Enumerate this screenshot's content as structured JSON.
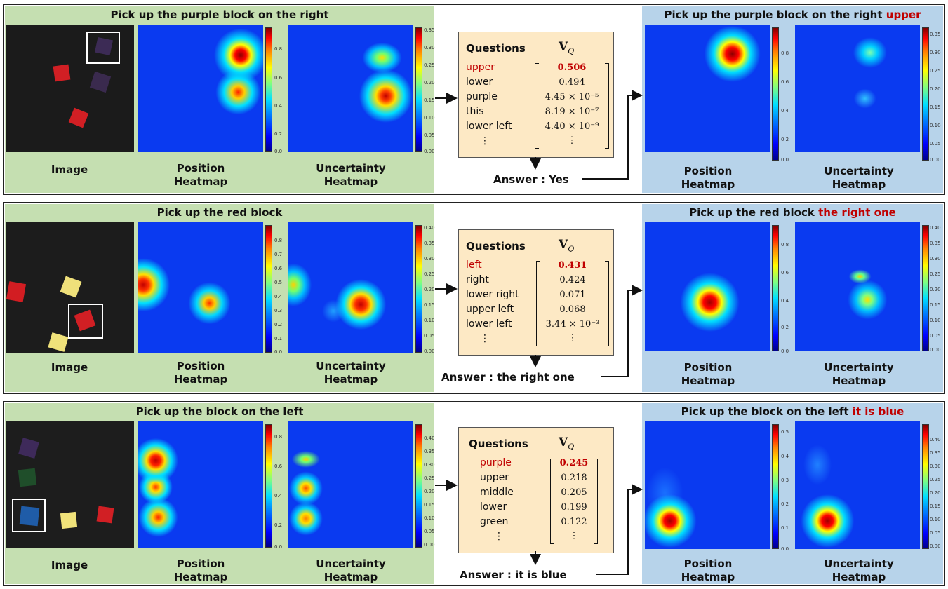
{
  "colorbar_ticks": {
    "pos_a": [
      "0.8",
      "0.6",
      "0.4",
      "0.2",
      "0.0"
    ],
    "unc_a": [
      "0.35",
      "0.30",
      "0.25",
      "0.20",
      "0.15",
      "0.10",
      "0.05",
      "0.00"
    ],
    "pos_b": [
      "0.8",
      "0.7",
      "0.6",
      "0.5",
      "0.4",
      "0.3",
      "0.2",
      "0.1",
      "0.0"
    ],
    "unc_b": [
      "0.40",
      "0.35",
      "0.30",
      "0.25",
      "0.20",
      "0.15",
      "0.10",
      "0.05",
      "0.00"
    ],
    "pos_c": [
      "0.5",
      "0.4",
      "0.3",
      "0.2",
      "0.1",
      "0.0"
    ],
    "unc_c": [
      "0.40",
      "0.35",
      "0.30",
      "0.25",
      "0.20",
      "0.15",
      "0.10",
      "0.05",
      "0.00"
    ]
  },
  "labels": {
    "image": "Image",
    "position_1": "Position",
    "position_2": "Heatmap",
    "uncertainty_1": "Uncertainty",
    "uncertainty_2": "Heatmap",
    "questions": "Questions",
    "vq": "V",
    "vq_sub": "Q",
    "answer_prefix": "Answer : ",
    "dots": "⋮"
  },
  "rows": [
    {
      "instruction": "Pick up the purple block on the right",
      "refined_suffix": "upper",
      "answer": "Yes",
      "questions": [
        {
          "q": "upper",
          "v": "0.506"
        },
        {
          "q": "lower",
          "v": "0.494"
        },
        {
          "q": "purple",
          "v": "4.45 × 10⁻⁵"
        },
        {
          "q": "this",
          "v": "8.19 × 10⁻⁷"
        },
        {
          "q": "lower left",
          "v": "4.40 × 10⁻⁹"
        }
      ]
    },
    {
      "instruction": "Pick up the red block",
      "refined_suffix": "the right one",
      "answer": "the right one",
      "questions": [
        {
          "q": "left",
          "v": "0.431"
        },
        {
          "q": "right",
          "v": "0.424"
        },
        {
          "q": "lower right",
          "v": "0.071"
        },
        {
          "q": "upper left",
          "v": "0.068"
        },
        {
          "q": "lower left",
          "v": "3.44 × 10⁻³"
        }
      ]
    },
    {
      "instruction": "Pick up the block on the left",
      "refined_suffix": "it is blue",
      "answer": "it is blue",
      "questions": [
        {
          "q": "purple",
          "v": "0.245"
        },
        {
          "q": "upper",
          "v": "0.218"
        },
        {
          "q": "middle",
          "v": "0.205"
        },
        {
          "q": "lower",
          "v": "0.199"
        },
        {
          "q": "green",
          "v": "0.122"
        }
      ]
    }
  ]
}
